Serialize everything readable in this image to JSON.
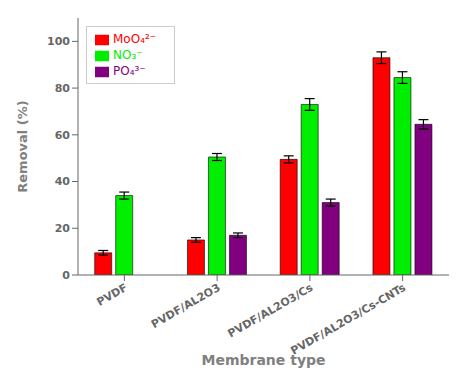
{
  "chart_data": {
    "type": "bar",
    "categories": [
      "PVDF",
      "PVDF/AL2O3",
      "PVDF/AL2O3/Cs",
      "PVDF/AL2O3/Cs-CNTs"
    ],
    "series": [
      {
        "name": "MoO₄²⁻",
        "color": "#ff0000",
        "values": [
          9.5,
          15.0,
          49.5,
          93.0
        ],
        "errors": [
          1.0,
          1.0,
          1.5,
          2.5
        ]
      },
      {
        "name": "NO₃⁻",
        "color": "#00ee00",
        "values": [
          34.0,
          50.5,
          73.0,
          84.5
        ],
        "errors": [
          1.5,
          1.5,
          2.5,
          2.5
        ]
      },
      {
        "name": "PO₄³⁻",
        "color": "#800080",
        "values": [
          null,
          17.0,
          31.0,
          64.5
        ],
        "errors": [
          null,
          1.0,
          1.5,
          2.0
        ]
      }
    ],
    "xlabel": "Membrane type",
    "ylabel": "Removal (%)",
    "ylim": [
      0,
      110
    ],
    "yticks": [
      0,
      20,
      40,
      60,
      80,
      100
    ],
    "legend": "upper left",
    "grid": false
  }
}
